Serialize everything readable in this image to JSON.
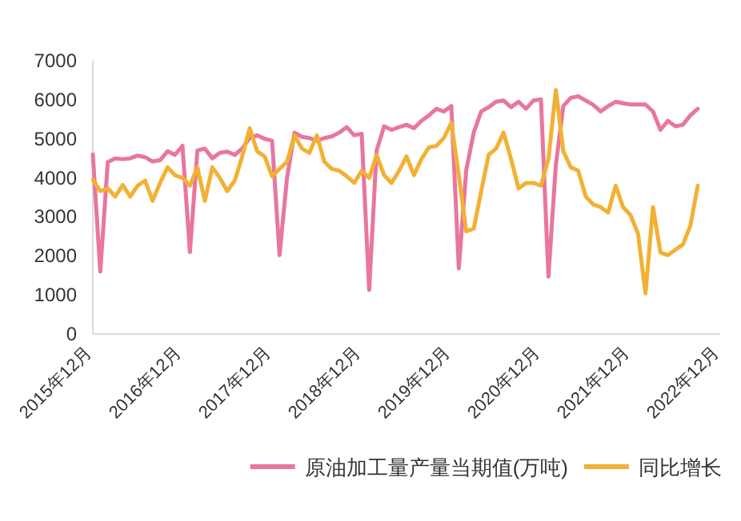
{
  "chart_data": {
    "type": "line",
    "categories": [
      "2015年12月",
      null,
      null,
      null,
      null,
      null,
      null,
      null,
      null,
      null,
      null,
      null,
      "2016年12月",
      null,
      null,
      null,
      null,
      null,
      null,
      null,
      null,
      null,
      null,
      null,
      "2017年12月",
      null,
      null,
      null,
      null,
      null,
      null,
      null,
      null,
      null,
      null,
      null,
      "2018年12月",
      null,
      null,
      null,
      null,
      null,
      null,
      null,
      null,
      null,
      null,
      null,
      "2019年12月",
      null,
      null,
      null,
      null,
      null,
      null,
      null,
      null,
      null,
      null,
      null,
      "2020年12月",
      null,
      null,
      null,
      null,
      null,
      null,
      null,
      null,
      null,
      null,
      null,
      "2021年12月",
      null,
      null,
      null,
      null,
      null,
      null,
      null,
      null,
      null,
      null,
      null,
      "2022年12月"
    ],
    "series": [
      {
        "name": "原油加工量产量当期值(万吨)",
        "color": "#e8769e",
        "values": [
          4600,
          1600,
          4400,
          4500,
          4480,
          4500,
          4570,
          4530,
          4420,
          4450,
          4680,
          4590,
          4820,
          2100,
          4700,
          4750,
          4500,
          4640,
          4670,
          4590,
          4750,
          5020,
          5090,
          5000,
          4950,
          2020,
          4000,
          5160,
          5050,
          5020,
          4950,
          5020,
          5060,
          5160,
          5300,
          5090,
          5130,
          1130,
          4700,
          5320,
          5230,
          5300,
          5360,
          5270,
          5460,
          5600,
          5770,
          5700,
          5840,
          1680,
          4200,
          5160,
          5700,
          5810,
          5950,
          5980,
          5810,
          5950,
          5770,
          5980,
          6010,
          1470,
          4340,
          5840,
          6050,
          6090,
          5980,
          5870,
          5700,
          5840,
          5950,
          5910,
          5880,
          5880,
          5880,
          5700,
          5230,
          5460,
          5320,
          5360,
          5600,
          5770,
          null,
          null,
          null
        ]
      },
      {
        "name": "同比增长",
        "color": "#f2b134",
        "values": [
          3960,
          3660,
          3730,
          3520,
          3820,
          3520,
          3800,
          3930,
          3410,
          3870,
          4270,
          4070,
          4000,
          3800,
          4270,
          3410,
          4270,
          4000,
          3660,
          3930,
          4550,
          5270,
          4680,
          4550,
          4040,
          4230,
          4410,
          5090,
          4750,
          4640,
          5090,
          4410,
          4230,
          4180,
          4040,
          3870,
          4180,
          4000,
          4590,
          4070,
          3870,
          4180,
          4550,
          4070,
          4480,
          4780,
          4820,
          5020,
          5410,
          4070,
          2630,
          2700,
          3660,
          4590,
          4750,
          5160,
          4480,
          3730,
          3870,
          3870,
          3800,
          4480,
          6250,
          4680,
          4270,
          4180,
          3520,
          3320,
          3250,
          3110,
          3800,
          3250,
          3040,
          2570,
          1040,
          3250,
          2090,
          2020,
          2160,
          2290,
          2770,
          3800,
          null,
          null,
          null
        ]
      }
    ],
    "ylim": [
      0,
      7000
    ],
    "yticks": [
      0,
      1000,
      2000,
      3000,
      4000,
      5000,
      6000,
      7000
    ],
    "legend": "bottom"
  }
}
